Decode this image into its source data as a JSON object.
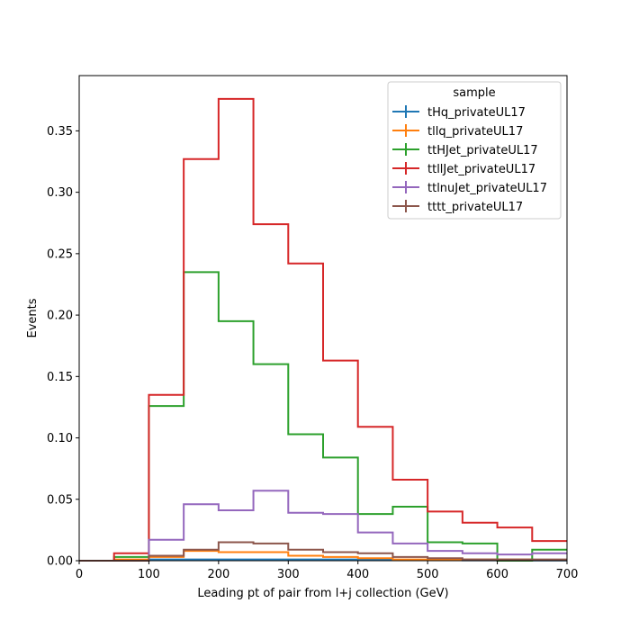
{
  "chart_data": {
    "type": "step-histogram",
    "xlabel": "Leading pt of pair from l+j collection (GeV)",
    "ylabel": "Events",
    "xlim": [
      0,
      700
    ],
    "ylim": [
      0,
      0.395
    ],
    "x_ticks": [
      0,
      100,
      200,
      300,
      400,
      500,
      600,
      700
    ],
    "y_ticks": [
      0.0,
      0.05,
      0.1,
      0.15,
      0.2,
      0.25,
      0.3,
      0.35
    ],
    "x_tick_labels": [
      "0",
      "100",
      "200",
      "300",
      "400",
      "500",
      "600",
      "700"
    ],
    "y_tick_labels": [
      "0.00",
      "0.05",
      "0.10",
      "0.15",
      "0.20",
      "0.25",
      "0.30",
      "0.35"
    ],
    "bin_edges": [
      0,
      50,
      100,
      150,
      200,
      250,
      300,
      350,
      400,
      450,
      500,
      550,
      600,
      650,
      700
    ],
    "grid": false,
    "legend": {
      "title": "sample",
      "placement": "top-right"
    },
    "series": [
      {
        "name": "tHq_privateUL17",
        "color": "#1f77b4",
        "values": [
          0.0,
          0.0,
          0.001,
          0.001,
          0.001,
          0.001,
          0.001,
          0.001,
          0.001,
          0.0005,
          0.0005,
          0.0003,
          0.0002,
          0.0002
        ]
      },
      {
        "name": "tllq_privateUL17",
        "color": "#ff7f0e",
        "values": [
          0.0,
          0.001,
          0.003,
          0.008,
          0.007,
          0.007,
          0.004,
          0.003,
          0.002,
          0.001,
          0.001,
          0.001,
          0.001,
          0.0005
        ]
      },
      {
        "name": "ttHJet_privateUL17",
        "color": "#2ca02c",
        "values": [
          0.0,
          0.003,
          0.126,
          0.235,
          0.195,
          0.16,
          0.103,
          0.084,
          0.038,
          0.044,
          0.015,
          0.014,
          0.0,
          0.009
        ]
      },
      {
        "name": "ttllJet_privateUL17",
        "color": "#d62728",
        "values": [
          0.0,
          0.006,
          0.135,
          0.327,
          0.376,
          0.274,
          0.242,
          0.163,
          0.109,
          0.066,
          0.04,
          0.031,
          0.027,
          0.016
        ]
      },
      {
        "name": "ttlnuJet_privateUL17",
        "color": "#9467bd",
        "values": [
          0.0,
          0.0,
          0.017,
          0.046,
          0.041,
          0.057,
          0.039,
          0.038,
          0.023,
          0.014,
          0.008,
          0.006,
          0.005,
          0.006
        ]
      },
      {
        "name": "tttt_privateUL17",
        "color": "#8c564b",
        "values": [
          0.0,
          0.0,
          0.004,
          0.009,
          0.015,
          0.014,
          0.009,
          0.007,
          0.006,
          0.003,
          0.002,
          0.001,
          0.001,
          0.001
        ]
      }
    ]
  }
}
